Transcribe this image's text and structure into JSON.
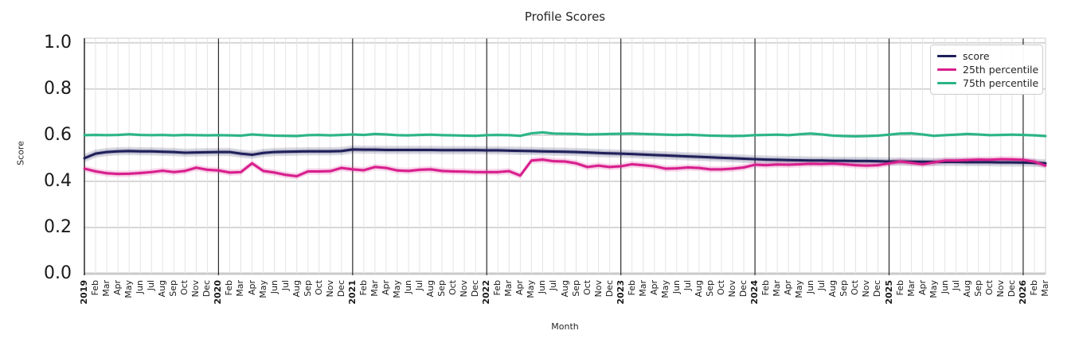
{
  "title": "Profile Scores",
  "axes": {
    "xlabel": "Month",
    "ylabel": "Score",
    "ytick_labels": [
      "0.0",
      "0.2",
      "0.4",
      "0.6",
      "0.8",
      "1.0"
    ],
    "ytick_values": [
      0.0,
      0.2,
      0.4,
      0.6,
      0.8,
      1.0
    ],
    "ylim": [
      0.0,
      1.02
    ]
  },
  "legend": {
    "position": "upper right",
    "entries": [
      "score",
      "25th percentile",
      "75th percentile"
    ]
  },
  "colors": {
    "score": "#1f1f5a",
    "p25": "#d81f8d",
    "p75": "#2bb487",
    "year_gridline": "#2b2b2b",
    "month_gridline": "#e4e4e4",
    "h_gridline": "#d4d4d4",
    "axis_spine_dark": "#333333",
    "axis_spine_light": "#cccccc",
    "text": "#262626"
  },
  "chart_data": {
    "type": "line",
    "title": "Profile Scores",
    "xlabel": "Month",
    "ylabel": "Score",
    "ylim": [
      0.0,
      1.02
    ],
    "grid": true,
    "legend_position": "upper right",
    "x": [
      "2019",
      "Feb",
      "Mar",
      "Apr",
      "May",
      "Jun",
      "Jul",
      "Aug",
      "Sep",
      "Oct",
      "Nov",
      "Dec",
      "2020",
      "Feb",
      "Mar",
      "Apr",
      "May",
      "Jun",
      "Jul",
      "Aug",
      "Sep",
      "Oct",
      "Nov",
      "Dec",
      "2021",
      "Feb",
      "Mar",
      "Apr",
      "May",
      "Jun",
      "Jul",
      "Aug",
      "Sep",
      "Oct",
      "Nov",
      "Dec",
      "2022",
      "Feb",
      "Mar",
      "Apr",
      "May",
      "Jun",
      "Jul",
      "Aug",
      "Sep",
      "Oct",
      "Nov",
      "Dec",
      "2023",
      "Feb",
      "Mar",
      "Apr",
      "May",
      "Jun",
      "Jul",
      "Aug",
      "Sep",
      "Oct",
      "Nov",
      "Dec",
      "2024",
      "Feb",
      "Mar",
      "Apr",
      "May",
      "Jun",
      "Jul",
      "Aug",
      "Sep",
      "Oct",
      "Nov",
      "Dec",
      "2025",
      "Feb",
      "Mar",
      "Apr",
      "May",
      "Jun",
      "Jul",
      "Aug",
      "Sep",
      "Oct",
      "Nov",
      "Dec",
      "2026",
      "Feb",
      "Mar"
    ],
    "year_start_indices": [
      0,
      12,
      24,
      36,
      48,
      60,
      72,
      84
    ],
    "series": [
      {
        "name": "score",
        "color": "#1f1f5a",
        "band_halfwidth": 0.018,
        "values": [
          0.5,
          0.52,
          0.527,
          0.53,
          0.531,
          0.53,
          0.53,
          0.528,
          0.527,
          0.524,
          0.525,
          0.526,
          0.527,
          0.527,
          0.52,
          0.515,
          0.523,
          0.527,
          0.528,
          0.529,
          0.53,
          0.53,
          0.53,
          0.531,
          0.538,
          0.537,
          0.537,
          0.536,
          0.536,
          0.536,
          0.536,
          0.536,
          0.535,
          0.535,
          0.535,
          0.535,
          0.534,
          0.534,
          0.533,
          0.532,
          0.531,
          0.53,
          0.529,
          0.528,
          0.527,
          0.525,
          0.523,
          0.521,
          0.52,
          0.518,
          0.516,
          0.514,
          0.512,
          0.51,
          0.508,
          0.506,
          0.504,
          0.502,
          0.5,
          0.498,
          0.496,
          0.494,
          0.493,
          0.492,
          0.491,
          0.49,
          0.49,
          0.489,
          0.489,
          0.488,
          0.488,
          0.487,
          0.486,
          0.486,
          0.485,
          0.485,
          0.484,
          0.484,
          0.484,
          0.483,
          0.483,
          0.483,
          0.482,
          0.482,
          0.481,
          0.48,
          0.478
        ]
      },
      {
        "name": "25th percentile",
        "color": "#d81f8d",
        "band_halfwidth": 0.014,
        "values": [
          0.455,
          0.443,
          0.435,
          0.432,
          0.433,
          0.436,
          0.44,
          0.446,
          0.44,
          0.445,
          0.459,
          0.45,
          0.447,
          0.438,
          0.44,
          0.478,
          0.445,
          0.438,
          0.428,
          0.422,
          0.443,
          0.443,
          0.444,
          0.458,
          0.452,
          0.448,
          0.462,
          0.458,
          0.447,
          0.445,
          0.45,
          0.452,
          0.445,
          0.443,
          0.442,
          0.44,
          0.44,
          0.44,
          0.444,
          0.425,
          0.49,
          0.494,
          0.487,
          0.486,
          0.478,
          0.462,
          0.468,
          0.462,
          0.465,
          0.474,
          0.47,
          0.465,
          0.455,
          0.456,
          0.46,
          0.458,
          0.452,
          0.452,
          0.455,
          0.46,
          0.472,
          0.47,
          0.473,
          0.472,
          0.474,
          0.476,
          0.475,
          0.477,
          0.474,
          0.47,
          0.468,
          0.47,
          0.478,
          0.486,
          0.48,
          0.474,
          0.482,
          0.49,
          0.49,
          0.492,
          0.494,
          0.493,
          0.496,
          0.495,
          0.493,
          0.485,
          0.468
        ]
      },
      {
        "name": "75th percentile",
        "color": "#2bb487",
        "band_halfwidth": 0.007,
        "values": [
          0.6,
          0.601,
          0.6,
          0.601,
          0.604,
          0.601,
          0.6,
          0.601,
          0.599,
          0.601,
          0.6,
          0.599,
          0.6,
          0.599,
          0.598,
          0.603,
          0.6,
          0.598,
          0.597,
          0.596,
          0.6,
          0.601,
          0.599,
          0.601,
          0.603,
          0.601,
          0.605,
          0.603,
          0.6,
          0.599,
          0.601,
          0.602,
          0.6,
          0.599,
          0.598,
          0.597,
          0.6,
          0.601,
          0.6,
          0.597,
          0.608,
          0.612,
          0.607,
          0.606,
          0.605,
          0.603,
          0.604,
          0.605,
          0.606,
          0.607,
          0.605,
          0.604,
          0.602,
          0.601,
          0.602,
          0.6,
          0.598,
          0.597,
          0.596,
          0.597,
          0.6,
          0.601,
          0.602,
          0.6,
          0.604,
          0.607,
          0.603,
          0.598,
          0.596,
          0.595,
          0.596,
          0.598,
          0.602,
          0.607,
          0.608,
          0.603,
          0.597,
          0.6,
          0.602,
          0.605,
          0.603,
          0.6,
          0.601,
          0.602,
          0.601,
          0.599,
          0.596
        ]
      }
    ]
  }
}
